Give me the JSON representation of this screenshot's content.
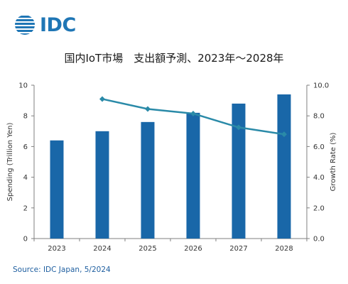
{
  "logo": {
    "text": "IDC"
  },
  "title": "国内IoT市場　支出額予測、2023年～2028年",
  "source": "Source: IDC Japan, 5/2024",
  "chart_data": {
    "type": "bar",
    "title": "国内IoT市場　支出額予測、2023年～2028年",
    "categories": [
      "2023",
      "2024",
      "2025",
      "2026",
      "2027",
      "2028"
    ],
    "ylabel": "Spending (Trillion Yen)",
    "ylim": [
      0,
      10
    ],
    "yticks": [
      "0",
      "2",
      "4",
      "6",
      "8",
      "10"
    ],
    "y2label": "Growth Rate (%)",
    "y2lim": [
      0,
      10
    ],
    "y2ticks": [
      "0.0",
      "2.0",
      "4.0",
      "6.0",
      "8.0",
      "10.0"
    ],
    "grid": false,
    "series": [
      {
        "type": "bar",
        "axis": "left",
        "color": "#1967a8",
        "values": [
          6.4,
          7.0,
          7.6,
          8.2,
          8.8,
          9.4
        ]
      },
      {
        "type": "line",
        "axis": "right",
        "color": "#2a8aa8",
        "values": [
          null,
          9.1,
          8.45,
          8.15,
          7.25,
          6.8
        ]
      }
    ]
  }
}
